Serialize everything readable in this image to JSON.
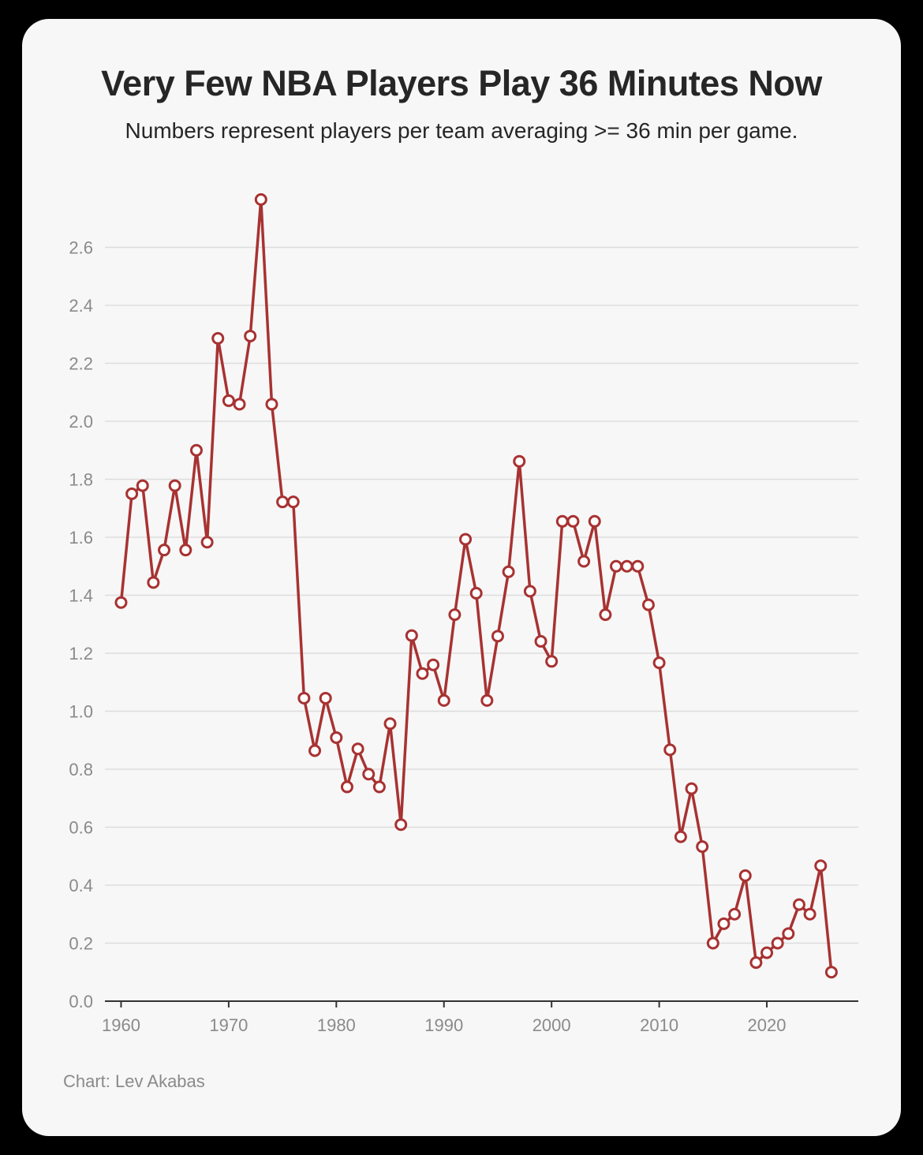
{
  "colors": {
    "background": "#f7f7f7",
    "line": "#a83232",
    "grid": "#dddddd",
    "text": "#262626",
    "muted": "#8a8a8a"
  },
  "chart_data": {
    "type": "line",
    "title": "Very Few NBA Players Play 36 Minutes Now",
    "subtitle": "Numbers represent players per team averaging >= 36 min per game.",
    "source": "Chart: Lev Akabas",
    "xlabel": "",
    "ylabel": "",
    "xlim": [
      1958.5,
      2028.5
    ],
    "ylim": [
      0,
      2.8
    ],
    "xticks": [
      1960,
      1970,
      1980,
      1990,
      2000,
      2010,
      2020
    ],
    "yticks": [
      "0.0",
      "0.2",
      "0.4",
      "0.6",
      "0.8",
      "1.0",
      "1.2",
      "1.4",
      "1.6",
      "1.8",
      "2.0",
      "2.2",
      "2.4",
      "2.6"
    ],
    "grid": true,
    "series": [
      {
        "name": "Players per team averaging >= 36 min",
        "x": [
          1960,
          1961,
          1962,
          1963,
          1964,
          1965,
          1966,
          1967,
          1968,
          1969,
          1970,
          1971,
          1972,
          1973,
          1974,
          1975,
          1976,
          1977,
          1978,
          1979,
          1980,
          1981,
          1982,
          1983,
          1984,
          1985,
          1986,
          1987,
          1988,
          1989,
          1990,
          1991,
          1992,
          1993,
          1994,
          1995,
          1996,
          1997,
          1998,
          1999,
          2000,
          2001,
          2002,
          2003,
          2004,
          2005,
          2006,
          2007,
          2008,
          2009,
          2010,
          2011,
          2012,
          2013,
          2014,
          2015,
          2016,
          2017,
          2018,
          2019,
          2020,
          2021,
          2022,
          2023,
          2024,
          2025,
          2026
        ],
        "y": [
          1.375,
          1.75,
          1.778,
          1.444,
          1.556,
          1.778,
          1.556,
          1.9,
          1.583,
          2.286,
          2.071,
          2.059,
          2.294,
          2.765,
          2.059,
          1.722,
          1.722,
          1.045,
          0.864,
          1.045,
          0.909,
          0.739,
          0.87,
          0.783,
          0.739,
          0.957,
          0.609,
          1.261,
          1.13,
          1.16,
          1.037,
          1.333,
          1.593,
          1.407,
          1.037,
          1.259,
          1.481,
          1.862,
          1.414,
          1.241,
          1.172,
          1.655,
          1.655,
          1.517,
          1.655,
          1.333,
          1.5,
          1.5,
          1.5,
          1.367,
          1.167,
          0.867,
          0.567,
          0.733,
          0.533,
          0.2,
          0.267,
          0.3,
          0.433,
          0.133,
          0.167,
          0.2,
          0.233,
          0.333,
          0.3,
          0.467,
          0.1
        ]
      }
    ]
  }
}
